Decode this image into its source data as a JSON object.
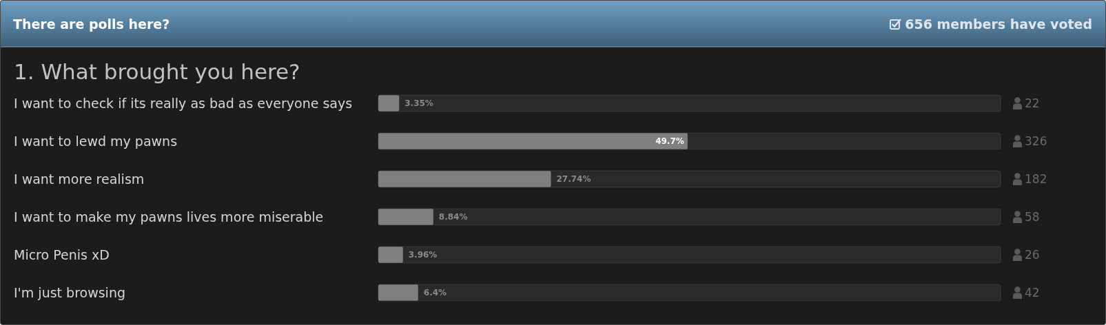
{
  "chart_data": {
    "type": "bar",
    "orientation": "horizontal",
    "title": "There are polls here?",
    "subtitle": "1. What brought you here?",
    "categories": [
      "I want to check if its really as bad as everyone says",
      "I want to lewd my pawns",
      "I want more realism",
      "I want to make my pawns lives more miserable",
      "Micro Penis xD",
      "I'm just browsing"
    ],
    "values": [
      3.35,
      49.7,
      27.74,
      8.84,
      3.96,
      6.4
    ],
    "value_labels": [
      "3.35%",
      "49.7%",
      "27.74%",
      "8.84%",
      "3.96%",
      "6.4%"
    ],
    "color": "#7f7f7f",
    "xlim": [
      0,
      100
    ],
    "tick_labels": "y",
    "annotations": [
      "656 members have voted",
      "22",
      "326",
      "182",
      "58",
      "26",
      "42"
    ]
  }
}
